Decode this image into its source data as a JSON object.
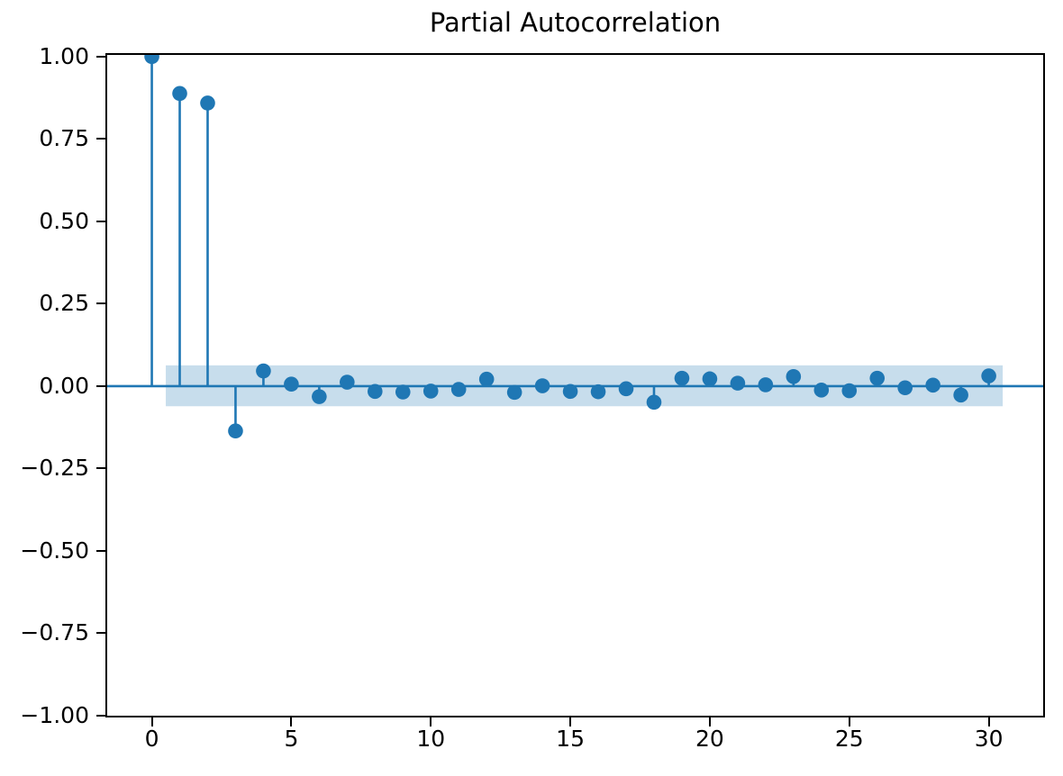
{
  "chart_data": {
    "type": "stem",
    "title": "Partial Autocorrelation",
    "xlabel": "",
    "ylabel": "",
    "x": [
      0,
      1,
      2,
      3,
      4,
      5,
      6,
      7,
      8,
      9,
      10,
      11,
      12,
      13,
      14,
      15,
      16,
      17,
      18,
      19,
      20,
      21,
      22,
      23,
      24,
      25,
      26,
      27,
      28,
      29,
      30
    ],
    "values": [
      1.0,
      0.888,
      0.859,
      -0.136,
      0.046,
      0.006,
      -0.032,
      0.012,
      -0.016,
      -0.018,
      -0.015,
      -0.01,
      0.021,
      -0.019,
      0.001,
      -0.016,
      -0.017,
      -0.008,
      -0.049,
      0.024,
      0.022,
      0.009,
      0.004,
      0.029,
      -0.012,
      -0.014,
      0.024,
      -0.005,
      0.003,
      -0.027,
      0.031
    ],
    "confidence_band": {
      "x_start": 0.5,
      "x_end": 30.5,
      "upper": 0.063,
      "lower": -0.061
    },
    "xlim": [
      -1.6,
      31.95
    ],
    "ylim": [
      -1.0,
      1.005
    ],
    "xticks": {
      "values": [
        0,
        5,
        10,
        15,
        20,
        25,
        30
      ],
      "labels": [
        "0",
        "5",
        "10",
        "15",
        "20",
        "25",
        "30"
      ]
    },
    "yticks": {
      "values": [
        1.0,
        0.75,
        0.5,
        0.25,
        0.0,
        -0.25,
        -0.5,
        -0.75,
        -1.0
      ],
      "labels": [
        "1.00",
        "0.75",
        "0.50",
        "0.25",
        "0.00",
        "−0.25",
        "−0.50",
        "−0.75",
        "−1.00"
      ]
    },
    "legend": null,
    "grid": false,
    "colors": {
      "stem": "#1f77b4",
      "marker": "#1f77b4",
      "zero_line": "#1f77b4",
      "band": "#1f77b4",
      "band_opacity": "0.25",
      "spine": "#000000",
      "text": "#000000",
      "background": "#ffffff"
    }
  }
}
